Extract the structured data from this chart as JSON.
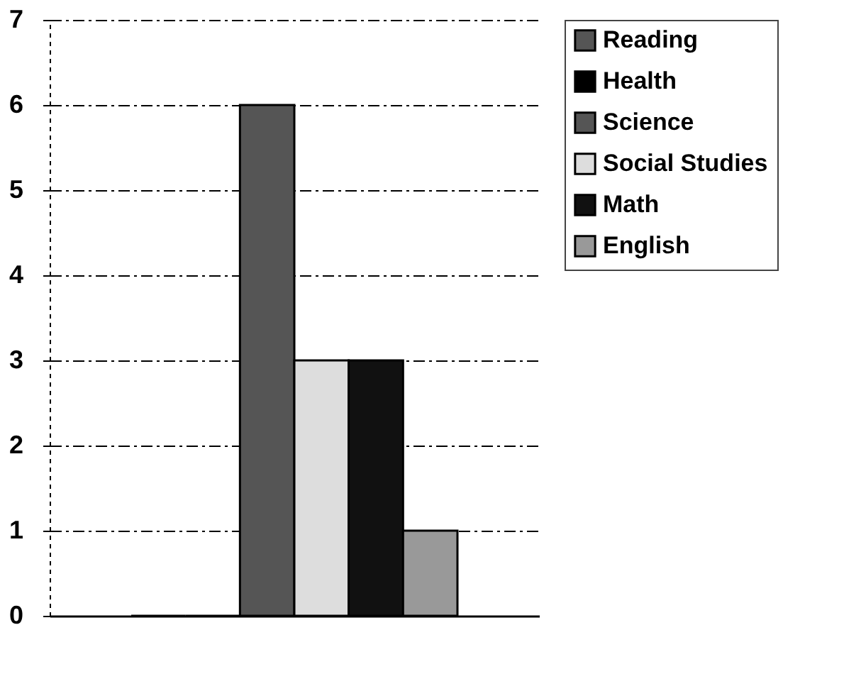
{
  "chart_data": {
    "type": "bar",
    "categories": [
      null
    ],
    "series": [
      {
        "name": "Reading",
        "color": "#555555",
        "values": [
          0
        ]
      },
      {
        "name": "Health",
        "color": "#000000",
        "values": [
          0
        ]
      },
      {
        "name": "Science",
        "color": "#555555",
        "values": [
          6
        ]
      },
      {
        "name": "Social Studies",
        "color": "#dddddd",
        "values": [
          3
        ]
      },
      {
        "name": "Math",
        "color": "#111111",
        "values": [
          3
        ]
      },
      {
        "name": "English",
        "color": "#999999",
        "values": [
          1
        ]
      }
    ],
    "ylim": [
      0,
      7
    ],
    "yticks": [
      0,
      1,
      2,
      3,
      4,
      5,
      6,
      7
    ],
    "grid": "y",
    "legend": "right",
    "tick_labels": "y"
  }
}
